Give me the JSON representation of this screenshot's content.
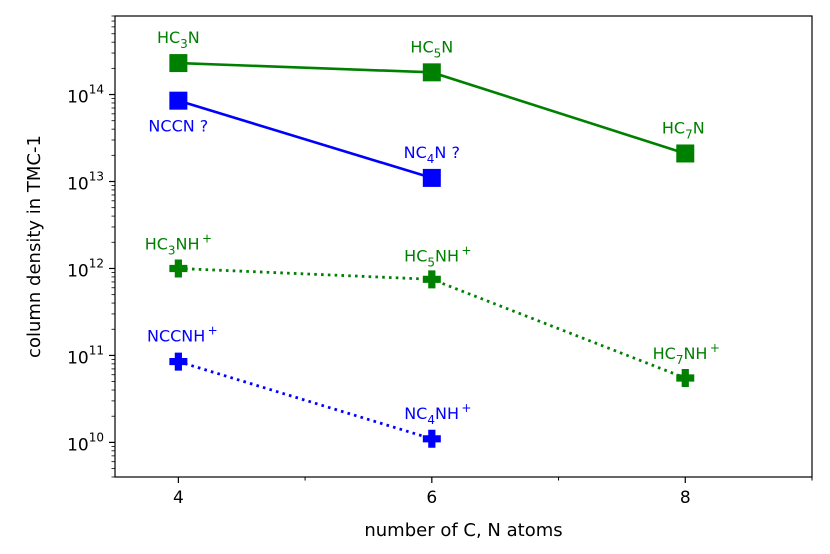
{
  "chart_data": {
    "type": "line",
    "title": "",
    "xlabel": "number of C, N atoms",
    "ylabel": "column density in TMC-1",
    "xlim": [
      3.5,
      9.0
    ],
    "ylim": [
      4000000000.0,
      800000000000000.0
    ],
    "yscale": "log",
    "x_ticks": [
      4,
      6,
      8
    ],
    "x_tick_labels": [
      "4",
      "6",
      "8"
    ],
    "x_minor_ticks": [
      5,
      7,
      9
    ],
    "y_tick_exponents": [
      10,
      11,
      12,
      13,
      14
    ],
    "grid": false,
    "legend": "none",
    "series": [
      {
        "color": "#008000",
        "marker": "square",
        "linestyle": "solid",
        "x": [
          4,
          6,
          8
        ],
        "y": [
          230000000000000.0,
          180000000000000.0,
          21000000000000.0
        ],
        "labels": [
          {
            "base": "HC",
            "sub": "3",
            "rest": "N",
            "sup": ""
          },
          {
            "base": "HC",
            "sub": "5",
            "rest": "N",
            "sup": ""
          },
          {
            "base": "HC",
            "sub": "7",
            "rest": "N",
            "sup": ""
          }
        ]
      },
      {
        "color": "#0000ff",
        "marker": "square",
        "linestyle": "solid",
        "x": [
          4,
          6
        ],
        "y": [
          85000000000000.0,
          11000000000000.0
        ],
        "labels": [
          {
            "base": "NCCN ?",
            "sub": "",
            "rest": "",
            "sup": ""
          },
          {
            "base": "NC",
            "sub": "4",
            "rest": "N ?",
            "sup": ""
          }
        ]
      },
      {
        "color": "#008000",
        "marker": "plus",
        "linestyle": "dotted",
        "x": [
          4,
          6,
          8
        ],
        "y": [
          1000000000000.0,
          750000000000.0,
          55000000000.0
        ],
        "labels": [
          {
            "base": "HC",
            "sub": "3",
            "rest": "NH",
            "sup": "+"
          },
          {
            "base": "HC",
            "sub": "5",
            "rest": "NH",
            "sup": "+"
          },
          {
            "base": "HC",
            "sub": "7",
            "rest": "NH",
            "sup": "+"
          }
        ]
      },
      {
        "color": "#0000ff",
        "marker": "plus",
        "linestyle": "dotted",
        "x": [
          4,
          6
        ],
        "y": [
          85000000000.0,
          11000000000.0
        ],
        "labels": [
          {
            "base": "NCCNH",
            "sub": "",
            "rest": "",
            "sup": "+"
          },
          {
            "base": "NC",
            "sub": "4",
            "rest": "NH",
            "sup": "+"
          }
        ]
      }
    ]
  }
}
